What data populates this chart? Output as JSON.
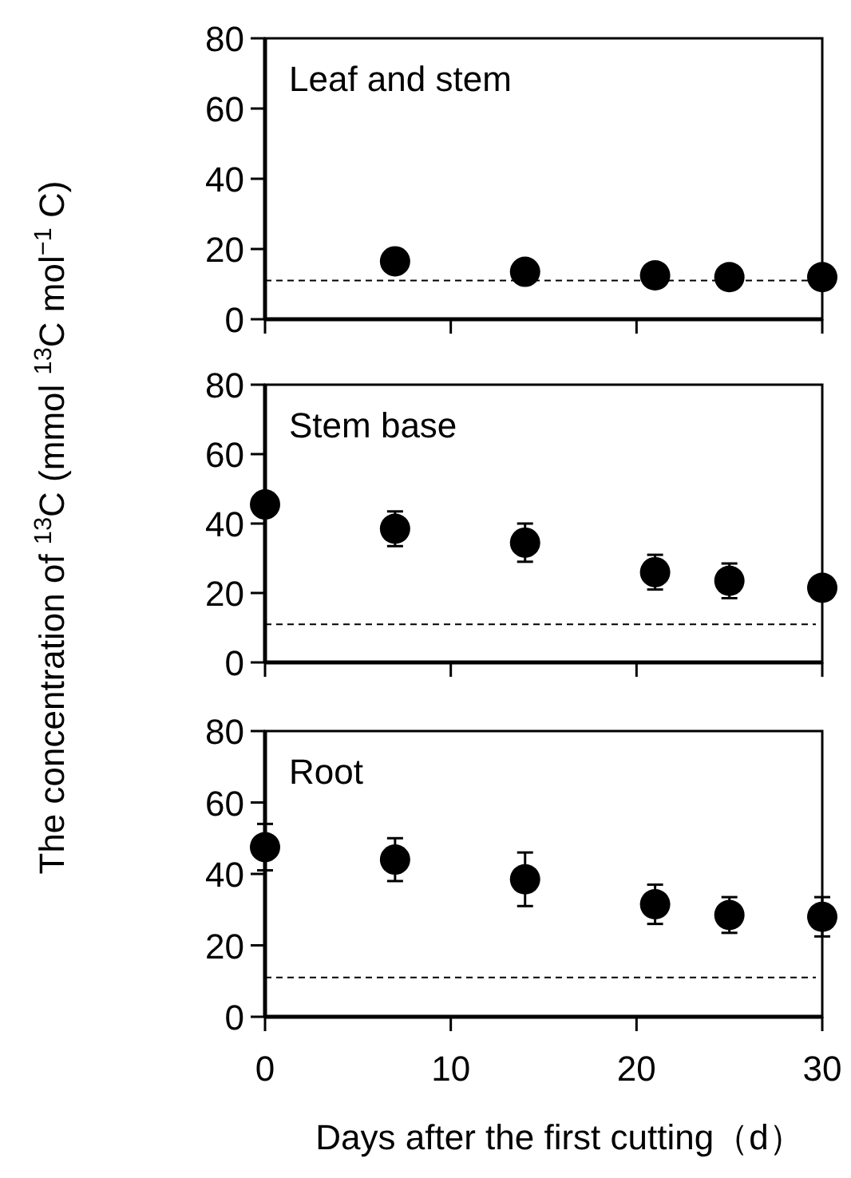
{
  "chart_data": [
    {
      "type": "scatter",
      "title": "Leaf and stem",
      "x": [
        7,
        14,
        21,
        25,
        30
      ],
      "marker": "circle",
      "series": [
        {
          "color": "#000000",
          "values": [
            16.5,
            13.5,
            12.5,
            12,
            12
          ]
        }
      ],
      "xlim": [
        0,
        30
      ],
      "xticks": [
        0,
        10,
        20,
        30
      ],
      "ylim": [
        0,
        80
      ],
      "yticks": [
        0,
        20,
        40,
        60,
        80
      ],
      "tick_labels": "y",
      "ref_lines": [
        {
          "axis": "y",
          "value": 11,
          "line_style": "dashed",
          "color": "#000000"
        }
      ]
    },
    {
      "type": "scatter",
      "title": "Stem base",
      "x": [
        0,
        7,
        14,
        21,
        25,
        30
      ],
      "marker": "circle",
      "ylabel": "The concentration of $^{13}$C (mmol $^{13}$C mol$^{−1}$ C)",
      "series": [
        {
          "color": "#000000",
          "values": [
            45.5,
            38.5,
            34.5,
            26,
            23.5,
            21.5
          ],
          "errors": [
            null,
            5,
            5.5,
            5,
            5,
            null
          ]
        }
      ],
      "xlim": [
        0,
        30
      ],
      "xticks": [
        0,
        10,
        20,
        30
      ],
      "ylim": [
        0,
        80
      ],
      "yticks": [
        0,
        20,
        40,
        60,
        80
      ],
      "tick_labels": "y",
      "ref_lines": [
        {
          "axis": "y",
          "value": 11,
          "line_style": "dashed",
          "color": "#000000"
        }
      ]
    },
    {
      "type": "scatter",
      "title": "Root",
      "x": [
        0,
        7,
        14,
        21,
        25,
        30
      ],
      "marker": "circle",
      "xlabel": "Days after the first cutting（d）",
      "series": [
        {
          "color": "#000000",
          "values": [
            47.5,
            44,
            38.5,
            31.5,
            28.5,
            28
          ],
          "errors": [
            6.5,
            6,
            7.5,
            5.5,
            5,
            5.5
          ]
        }
      ],
      "xlim": [
        0,
        30
      ],
      "xticks": [
        0,
        10,
        20,
        30
      ],
      "ylim": [
        0,
        80
      ],
      "yticks": [
        0,
        20,
        40,
        60,
        80
      ],
      "ref_lines": [
        {
          "axis": "y",
          "value": 11,
          "line_style": "dashed",
          "color": "#000000"
        }
      ]
    }
  ]
}
